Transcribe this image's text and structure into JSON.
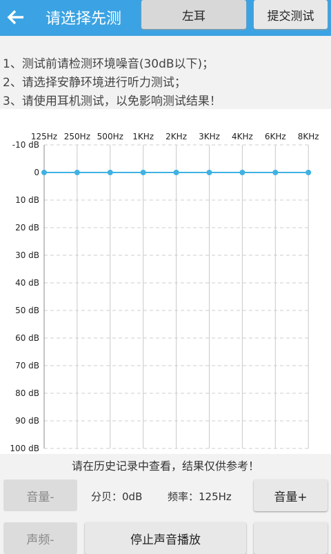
{
  "header": {
    "title": "请选择先测",
    "ear_button": "左耳",
    "submit_button": "提交测试"
  },
  "instructions": [
    "1、测试前请检测环境噪音(30dB以下)；",
    "2、请选择安静环境进行听力测试；",
    "3、请使用耳机测试，以免影响测试结果！"
  ],
  "chart_data": {
    "type": "line",
    "categories": [
      "125Hz",
      "250Hz",
      "500Hz",
      "1KHz",
      "2KHz",
      "3KHz",
      "4KHz",
      "6KHz",
      "8KHz"
    ],
    "series": [
      {
        "color": "#3fb2e3",
        "values": [
          0,
          0,
          0,
          0,
          0,
          0,
          0,
          0,
          0
        ]
      }
    ],
    "ylim": [
      -10,
      100
    ],
    "y_reversed": true,
    "yticks": [
      {
        "value": -10,
        "label": "-10 dB"
      },
      0,
      {
        "value": 10,
        "label": "10 dB"
      },
      {
        "value": 20,
        "label": "20 dB"
      },
      {
        "value": 30,
        "label": "30 dB"
      },
      {
        "value": 40,
        "label": "40 dB"
      },
      {
        "value": 50,
        "label": "50 dB"
      },
      {
        "value": 60,
        "label": "60 dB"
      },
      {
        "value": 70,
        "label": "70 dB"
      },
      {
        "value": 80,
        "label": "80 dB"
      },
      {
        "value": 90,
        "label": "90 dB"
      },
      {
        "value": 100,
        "label": "100 dB"
      }
    ],
    "grid": true
  },
  "footer": {
    "note": "请在历史记录中查看，结果仅供参考！"
  },
  "controls": {
    "volume_down": "音量-",
    "decibel": "分贝：0dB",
    "frequency": "频率：125Hz",
    "volume_up": "音量+",
    "freq_down": "声频-",
    "stop": "停止声音播放"
  }
}
